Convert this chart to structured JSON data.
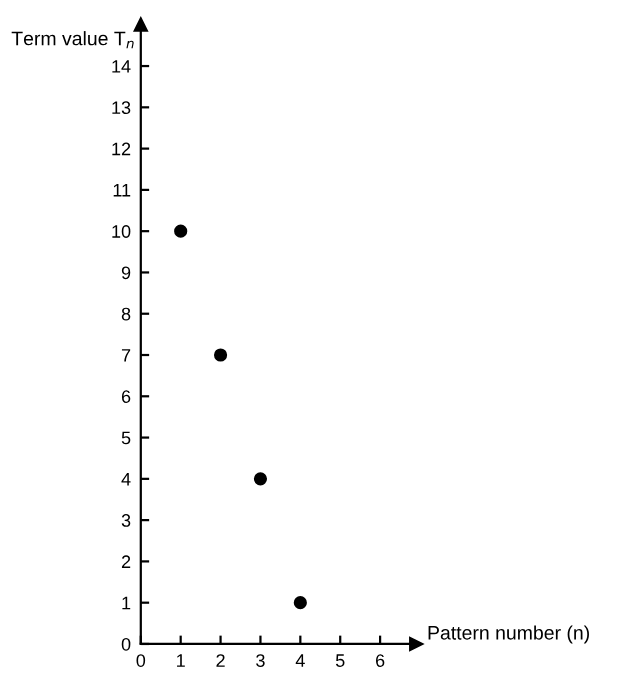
{
  "chart_data": {
    "type": "scatter",
    "xlabel": "Pattern number (n)",
    "ylabel": "Term value T$_{n}$",
    "x": [
      1,
      2,
      3,
      4
    ],
    "series": [
      {
        "color": "#000000",
        "values": [
          10,
          7,
          4,
          1
        ]
      }
    ],
    "xlim": [
      0,
      6.9
    ],
    "ylim": [
      0,
      15
    ],
    "xticks": [
      0,
      1,
      2,
      3,
      4,
      5,
      6
    ],
    "yticks": [
      0,
      1,
      2,
      3,
      4,
      5,
      6,
      7,
      8,
      9,
      10,
      11,
      12,
      13,
      14
    ],
    "marker": "circle",
    "grid": false,
    "legend": false
  }
}
